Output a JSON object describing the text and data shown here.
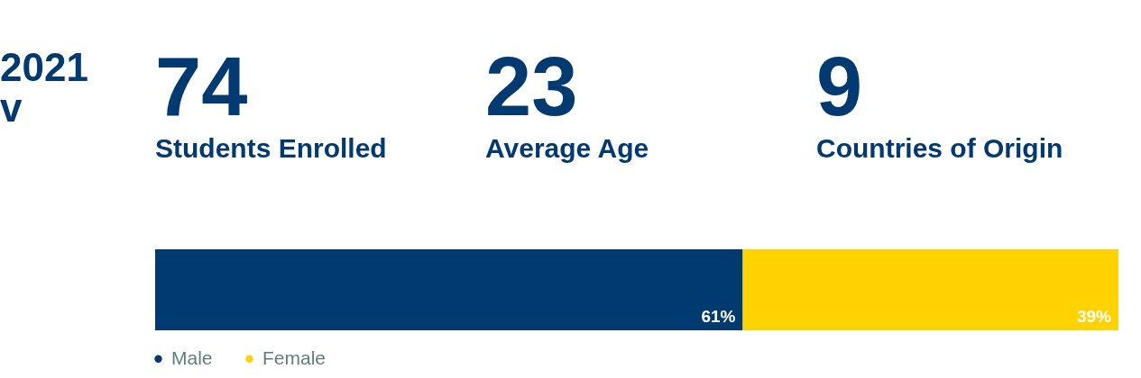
{
  "chart_data": [
    {
      "type": "other",
      "annotations": [
        "2021",
        "v",
        "74",
        "Students Enrolled",
        "23",
        "Average Age",
        "9",
        "Countries of Origin"
      ],
      "color": "#003a70"
    },
    {
      "type": "bar",
      "orientation": "horizontal",
      "stacked": true,
      "categories": [
        null
      ],
      "legend": "bottom left",
      "series": [
        {
          "name": "Male",
          "color": "#003a70",
          "values": [
            61
          ],
          "value_labels": [
            "61%"
          ]
        },
        {
          "name": "Female",
          "color": "#ffd200",
          "values": [
            39
          ],
          "value_labels": [
            "39%"
          ]
        }
      ]
    }
  ]
}
